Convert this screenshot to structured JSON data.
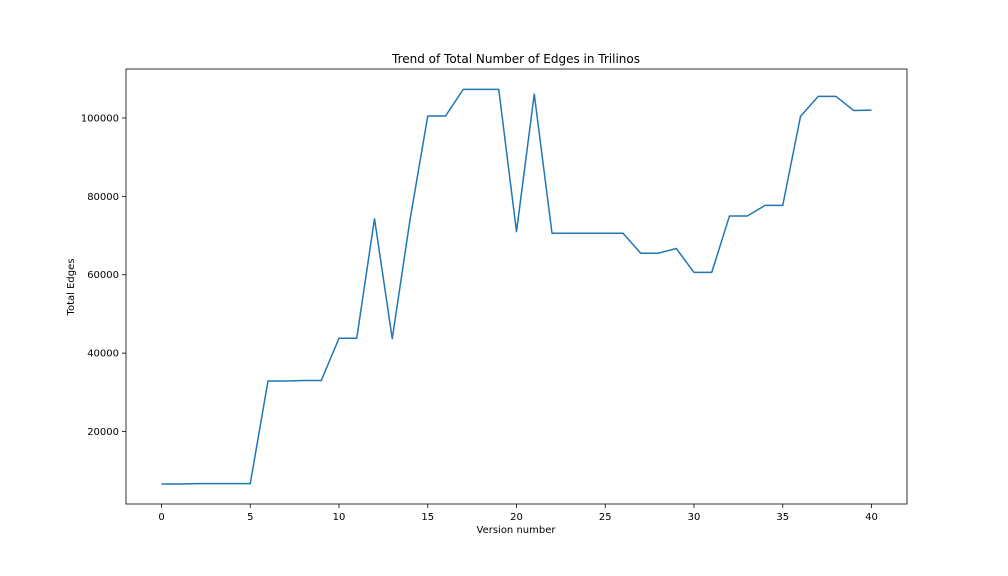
{
  "chart_data": {
    "type": "line",
    "title": "Trend of Total Number of Edges in Trilinos",
    "xlabel": "Version number",
    "ylabel": "Total Edges",
    "xlim": [
      -2,
      42
    ],
    "ylim": [
      1500,
      112500
    ],
    "xticks": [
      0,
      5,
      10,
      15,
      20,
      25,
      30,
      35,
      40
    ],
    "yticks": [
      20000,
      40000,
      60000,
      80000,
      100000
    ],
    "grid": false,
    "series": [
      {
        "color": "#1f77b4",
        "x": [
          0,
          1,
          2,
          3,
          4,
          5,
          6,
          7,
          8,
          9,
          10,
          11,
          12,
          13,
          14,
          15,
          16,
          17,
          18,
          19,
          20,
          21,
          22,
          23,
          24,
          25,
          26,
          27,
          28,
          29,
          30,
          31,
          32,
          33,
          34,
          35,
          36,
          37,
          38,
          39,
          40
        ],
        "y": [
          6600,
          6600,
          6700,
          6700,
          6700,
          6700,
          32900,
          32900,
          33000,
          33000,
          43800,
          43800,
          74300,
          43700,
          74000,
          100500,
          100500,
          107300,
          107300,
          107300,
          71000,
          106100,
          70600,
          70600,
          70600,
          70600,
          70600,
          65500,
          65500,
          66700,
          60600,
          60600,
          75000,
          75000,
          77700,
          77700,
          100400,
          105500,
          105500,
          101900,
          102000
        ]
      }
    ]
  }
}
